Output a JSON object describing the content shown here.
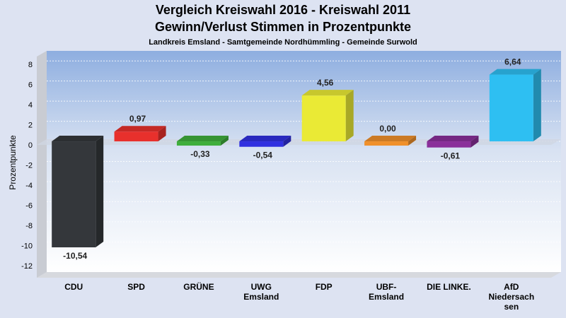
{
  "header": {
    "title_line1": "Vergleich Kreiswahl 2016 - Kreiswahl 2011",
    "title_line2": "Gewinn/Verlust Stimmen in Prozentpunkte",
    "subtitle": "Landkreis Emsland - Samtgemeinde Nordhümmling - Gemeinde Surwold"
  },
  "chart_data": {
    "type": "bar",
    "title": "Vergleich Kreiswahl 2016 - Kreiswahl 2011 / Gewinn/Verlust Stimmen in Prozentpunkte",
    "subtitle": "Landkreis Emsland - Samtgemeinde Nordhümmling - Gemeinde Surwold",
    "xlabel": "",
    "ylabel": "Prozentpunkte",
    "ylim": [
      -13,
      9
    ],
    "yticks": [
      8,
      6,
      4,
      2,
      0,
      -2,
      -4,
      -6,
      -8,
      -10,
      -12
    ],
    "grid": true,
    "categories": [
      [
        "CDU"
      ],
      [
        "SPD"
      ],
      [
        "GRÜNE"
      ],
      [
        "UWG",
        "Emsland"
      ],
      [
        "FDP"
      ],
      [
        "UBF-",
        "Emsland"
      ],
      [
        "DIE LINKE."
      ],
      [
        "AfD",
        "Niedersach",
        "sen"
      ]
    ],
    "values": [
      -10.54,
      0.97,
      -0.33,
      -0.54,
      4.56,
      0.0,
      -0.61,
      6.64
    ],
    "value_labels": [
      "-10,54",
      "0,97",
      "-0,33",
      "-0,54",
      "4,56",
      "0,00",
      "-0,61",
      "6,64"
    ],
    "colors": [
      "#34373b",
      "#e8302c",
      "#3fae3c",
      "#3030e0",
      "#eaea35",
      "#f0902a",
      "#8a2f9a",
      "#2ebff2"
    ]
  }
}
